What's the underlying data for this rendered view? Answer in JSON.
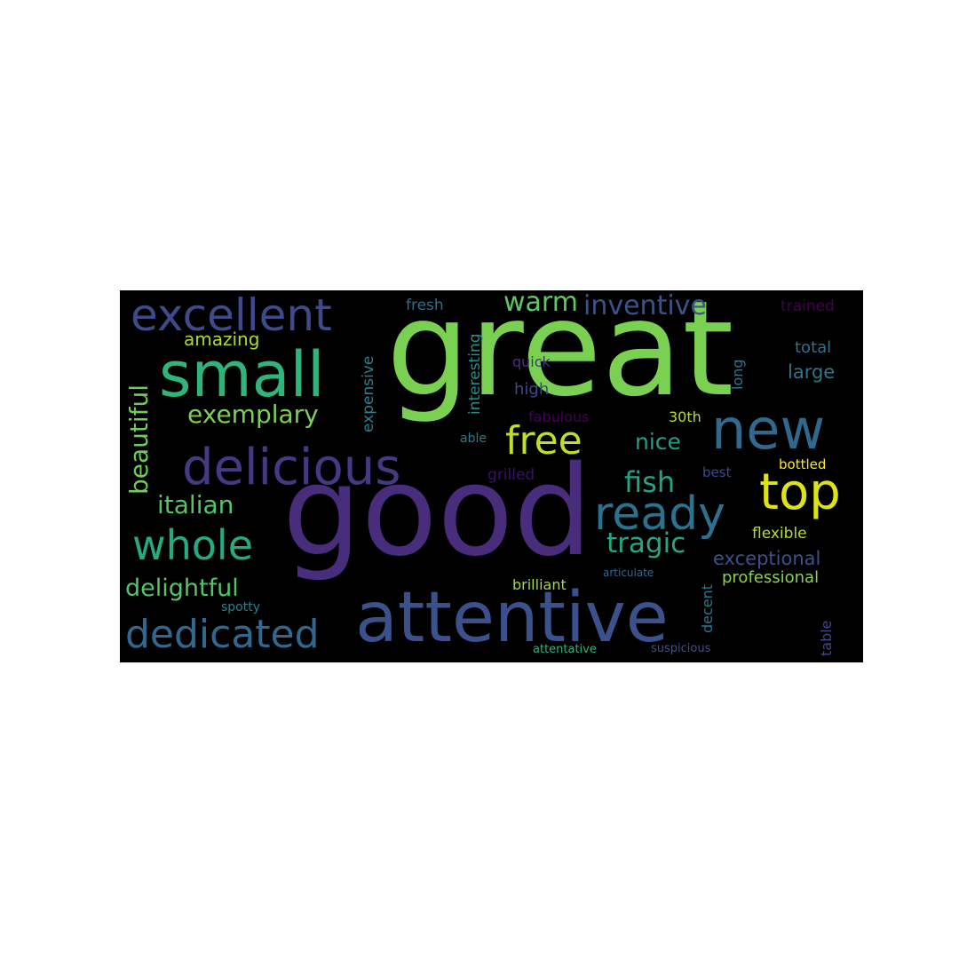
{
  "background": "#000000",
  "words": [
    {
      "text": "great",
      "color": "#7ad151"
    },
    {
      "text": "good",
      "color": "#472d7b"
    },
    {
      "text": "attentive",
      "color": "#3b518b"
    },
    {
      "text": "small",
      "color": "#2fb47c"
    },
    {
      "text": "delicious",
      "color": "#443a83"
    },
    {
      "text": "excellent",
      "color": "#3e4a89"
    },
    {
      "text": "new",
      "color": "#31688e"
    },
    {
      "text": "top",
      "color": "#dde318"
    },
    {
      "text": "ready",
      "color": "#2c728e"
    },
    {
      "text": "whole",
      "color": "#25ab82"
    },
    {
      "text": "dedicated",
      "color": "#31688e"
    },
    {
      "text": "free",
      "color": "#bddf26"
    },
    {
      "text": "beautiful",
      "color": "#6ece58"
    },
    {
      "text": "exemplary",
      "color": "#7ad151"
    },
    {
      "text": "italian",
      "color": "#52c569"
    },
    {
      "text": "delightful",
      "color": "#52c569"
    },
    {
      "text": "warm",
      "color": "#5ec962"
    },
    {
      "text": "inventive",
      "color": "#3b528b"
    },
    {
      "text": "fish",
      "color": "#20a486"
    },
    {
      "text": "tragic",
      "color": "#22a884"
    },
    {
      "text": "nice",
      "color": "#1fa088"
    },
    {
      "text": "amazing",
      "color": "#aadc32"
    },
    {
      "text": "exceptional",
      "color": "#3b518b"
    },
    {
      "text": "professional",
      "color": "#86d549"
    },
    {
      "text": "interesting",
      "color": "#21918c"
    },
    {
      "text": "expensive",
      "color": "#26828e"
    },
    {
      "text": "fresh",
      "color": "#2d708e"
    },
    {
      "text": "quick",
      "color": "#46327e"
    },
    {
      "text": "high",
      "color": "#3e4989"
    },
    {
      "text": "fabulous",
      "color": "#440154"
    },
    {
      "text": "able",
      "color": "#287c8e"
    },
    {
      "text": "grilled",
      "color": "#3b0f70"
    },
    {
      "text": "long",
      "color": "#2a788e"
    },
    {
      "text": "30th",
      "color": "#b5de2b"
    },
    {
      "text": "best",
      "color": "#3e4989"
    },
    {
      "text": "total",
      "color": "#2c728e"
    },
    {
      "text": "large",
      "color": "#2a788e"
    },
    {
      "text": "trained",
      "color": "#440154"
    },
    {
      "text": "bottled",
      "color": "#fde725"
    },
    {
      "text": "flexible",
      "color": "#b5de2b"
    },
    {
      "text": "brilliant",
      "color": "#a2da37"
    },
    {
      "text": "articulate",
      "color": "#31688e"
    },
    {
      "text": "decent",
      "color": "#2a788e"
    },
    {
      "text": "table",
      "color": "#3e4a89"
    },
    {
      "text": "spotty",
      "color": "#26828e"
    },
    {
      "text": "attentative",
      "color": "#2fb47c"
    },
    {
      "text": "suspicious",
      "color": "#3b528b"
    }
  ]
}
